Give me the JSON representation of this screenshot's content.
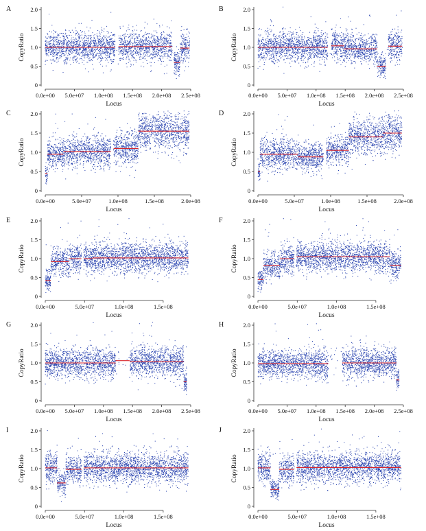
{
  "figure": {
    "layout": "5x2 grid of copy-ratio scatter panels"
  },
  "chart_data": [
    {
      "panel": "A",
      "type": "scatter",
      "xlabel": "Locus",
      "ylabel": "CopyRatio",
      "ylim": [
        0,
        2
      ],
      "xlim": [
        0,
        250000000.0
      ],
      "yticks": [
        0,
        0.5,
        1.0,
        1.5,
        2.0
      ],
      "ytick_labels": [
        "0",
        "0.5",
        "1.0",
        "1.5",
        "2.0"
      ],
      "xticks": [
        0,
        50000000.0,
        100000000.0,
        150000000.0,
        200000000.0,
        250000000.0
      ],
      "xtick_labels": [
        "0.0e+00",
        "5.0e+07",
        "1.0e+08",
        "1.5e+08",
        "2.0e+08",
        "2.5e+08"
      ],
      "extent": 248000000.0,
      "gaps": [
        [
          120000000.0,
          126000000.0
        ],
        [
          218000000.0,
          221000000.0
        ]
      ],
      "segments": [
        {
          "start": 0,
          "end": 120000000.0,
          "mean": 1.0
        },
        {
          "start": 126000000.0,
          "end": 218000000.0,
          "mean": 1.02
        },
        {
          "start": 221000000.0,
          "end": 232000000.0,
          "mean": 0.6
        },
        {
          "start": 232000000.0,
          "end": 248000000.0,
          "mean": 0.98
        }
      ]
    },
    {
      "panel": "B",
      "type": "scatter",
      "xlabel": "Locus",
      "ylabel": "CopyRatio",
      "ylim": [
        0,
        2
      ],
      "xlim": [
        0,
        250000000.0
      ],
      "yticks": [
        0,
        0.5,
        1.0,
        1.5,
        2.0
      ],
      "ytick_labels": [
        "0",
        "0.5",
        "1.0",
        "1.5",
        "2.0"
      ],
      "xticks": [
        0,
        50000000.0,
        100000000.0,
        150000000.0,
        200000000.0,
        250000000.0
      ],
      "xtick_labels": [
        "0.0e+00",
        "5.0e+07",
        "1.0e+08",
        "1.5e+08",
        "2.0e+08",
        "2.5e+08"
      ],
      "extent": 248000000.0,
      "gaps": [
        [
          120000000.0,
          126000000.0
        ],
        [
          220000000.0,
          224000000.0
        ]
      ],
      "segments": [
        {
          "start": 0,
          "end": 120000000.0,
          "mean": 1.0
        },
        {
          "start": 126000000.0,
          "end": 148000000.0,
          "mean": 1.04
        },
        {
          "start": 148000000.0,
          "end": 205000000.0,
          "mean": 0.96
        },
        {
          "start": 205000000.0,
          "end": 220000000.0,
          "mean": 0.5
        },
        {
          "start": 224000000.0,
          "end": 248000000.0,
          "mean": 1.03
        }
      ]
    },
    {
      "panel": "C",
      "type": "scatter",
      "xlabel": "Locus",
      "ylabel": "CopyRatio",
      "ylim": [
        0,
        2
      ],
      "xlim": [
        0,
        200000000.0
      ],
      "yticks": [
        0,
        0.5,
        1.0,
        1.5,
        2.0
      ],
      "ytick_labels": [
        "0",
        "0.5",
        "1.0",
        "1.5",
        "2.0"
      ],
      "xticks": [
        0,
        50000000.0,
        100000000.0,
        150000000.0,
        200000000.0
      ],
      "xtick_labels": [
        "0.0e+00",
        "5.0e+07",
        "1.0e+08",
        "1.5e+08",
        "2.0e+08"
      ],
      "extent": 198000000.0,
      "gaps": [
        [
          90000000.0,
          94000000.0
        ]
      ],
      "segments": [
        {
          "start": 0,
          "end": 3000000.0,
          "mean": 0.45
        },
        {
          "start": 3000000.0,
          "end": 25000000.0,
          "mean": 0.95
        },
        {
          "start": 25000000.0,
          "end": 90000000.0,
          "mean": 1.02
        },
        {
          "start": 94000000.0,
          "end": 128000000.0,
          "mean": 1.1
        },
        {
          "start": 128000000.0,
          "end": 198000000.0,
          "mean": 1.55
        }
      ]
    },
    {
      "panel": "D",
      "type": "scatter",
      "xlabel": "Locus",
      "ylabel": "CopyRatio",
      "ylim": [
        0,
        2
      ],
      "xlim": [
        0,
        200000000.0
      ],
      "yticks": [
        0,
        0.5,
        1.0,
        1.5,
        2.0
      ],
      "ytick_labels": [
        "0",
        "0.5",
        "1.0",
        "1.5",
        "2.0"
      ],
      "xticks": [
        0,
        50000000.0,
        100000000.0,
        150000000.0,
        200000000.0
      ],
      "xtick_labels": [
        "0.0e+00",
        "5.0e+07",
        "1.0e+08",
        "1.5e+08",
        "2.0e+08"
      ],
      "extent": 198000000.0,
      "gaps": [
        [
          90000000.0,
          94000000.0
        ]
      ],
      "segments": [
        {
          "start": 0,
          "end": 3000000.0,
          "mean": 0.5
        },
        {
          "start": 3000000.0,
          "end": 55000000.0,
          "mean": 0.95
        },
        {
          "start": 55000000.0,
          "end": 90000000.0,
          "mean": 0.88
        },
        {
          "start": 94000000.0,
          "end": 125000000.0,
          "mean": 1.05
        },
        {
          "start": 125000000.0,
          "end": 172000000.0,
          "mean": 1.4
        },
        {
          "start": 172000000.0,
          "end": 198000000.0,
          "mean": 1.5
        }
      ]
    },
    {
      "panel": "E",
      "type": "scatter",
      "xlabel": "Locus",
      "ylabel": "CopyRatio",
      "ylim": [
        0,
        2
      ],
      "xlim": [
        0,
        185000000.0
      ],
      "yticks": [
        0,
        0.5,
        1.0,
        1.5,
        2.0
      ],
      "ytick_labels": [
        "0",
        "0.5",
        "1.0",
        "1.5",
        "2.0"
      ],
      "xticks": [
        0,
        50000000.0,
        100000000.0,
        150000000.0
      ],
      "xtick_labels": [
        "0.0e+00",
        "5.0e+07",
        "1.0e+08",
        "1.5e+08"
      ],
      "extent": 182000000.0,
      "gaps": [
        [
          46000000.0,
          49000000.0
        ]
      ],
      "segments": [
        {
          "start": 0,
          "end": 7000000.0,
          "mean": 0.42
        },
        {
          "start": 7000000.0,
          "end": 30000000.0,
          "mean": 0.92
        },
        {
          "start": 30000000.0,
          "end": 46000000.0,
          "mean": 1.0
        },
        {
          "start": 49000000.0,
          "end": 60000000.0,
          "mean": 1.0
        },
        {
          "start": 60000000.0,
          "end": 182000000.0,
          "mean": 1.02
        }
      ]
    },
    {
      "panel": "F",
      "type": "scatter",
      "xlabel": "Locus",
      "ylabel": "CopyRatio",
      "ylim": [
        0,
        2
      ],
      "xlim": [
        0,
        185000000.0
      ],
      "yticks": [
        0,
        0.5,
        1.0,
        1.5,
        2.0
      ],
      "ytick_labels": [
        "0",
        "0.5",
        "1.0",
        "1.5",
        "2.0"
      ],
      "xticks": [
        0,
        50000000.0,
        100000000.0,
        150000000.0
      ],
      "xtick_labels": [
        "0.0e+00",
        "5.0e+07",
        "1.0e+08",
        "1.5e+08"
      ],
      "extent": 182000000.0,
      "gaps": [
        [
          46000000.0,
          49000000.0
        ]
      ],
      "segments": [
        {
          "start": 0,
          "end": 7000000.0,
          "mean": 0.45
        },
        {
          "start": 7000000.0,
          "end": 28000000.0,
          "mean": 0.82
        },
        {
          "start": 28000000.0,
          "end": 46000000.0,
          "mean": 1.0
        },
        {
          "start": 49000000.0,
          "end": 168000000.0,
          "mean": 1.05
        },
        {
          "start": 168000000.0,
          "end": 182000000.0,
          "mean": 0.82
        }
      ]
    },
    {
      "panel": "G",
      "type": "scatter",
      "xlabel": "Locus",
      "ylabel": "CopyRatio",
      "ylim": [
        0,
        2
      ],
      "xlim": [
        0,
        250000000.0
      ],
      "yticks": [
        0,
        0.5,
        1.0,
        1.5,
        2.0
      ],
      "ytick_labels": [
        "0",
        "0.5",
        "1.0",
        "1.5",
        "2.0"
      ],
      "xticks": [
        0,
        50000000.0,
        100000000.0,
        150000000.0,
        200000000.0,
        250000000.0
      ],
      "xtick_labels": [
        "0.0e+00",
        "5.0e+07",
        "1.0e+08",
        "1.5e+08",
        "2.0e+08",
        "2.5e+08"
      ],
      "extent": 243000000.0,
      "gaps": [
        [
          121000000.0,
          145000000.0
        ]
      ],
      "segments": [
        {
          "start": 0,
          "end": 121000000.0,
          "mean": 1.0
        },
        {
          "start": 121000000.0,
          "end": 145000000.0,
          "mean": 1.06
        },
        {
          "start": 145000000.0,
          "end": 238000000.0,
          "mean": 1.03
        },
        {
          "start": 238000000.0,
          "end": 243000000.0,
          "mean": 0.5
        }
      ]
    },
    {
      "panel": "H",
      "type": "scatter",
      "xlabel": "Locus",
      "ylabel": "CopyRatio",
      "ylim": [
        0,
        2
      ],
      "xlim": [
        0,
        250000000.0
      ],
      "yticks": [
        0,
        0.5,
        1.0,
        1.5,
        2.0
      ],
      "ytick_labels": [
        "0",
        "0.5",
        "1.0",
        "1.5",
        "2.0"
      ],
      "xticks": [
        0,
        50000000.0,
        100000000.0,
        150000000.0,
        200000000.0,
        250000000.0
      ],
      "xtick_labels": [
        "0.0e+00",
        "5.0e+07",
        "1.0e+08",
        "1.5e+08",
        "2.0e+08",
        "2.5e+08"
      ],
      "extent": 243000000.0,
      "gaps": [
        [
          121000000.0,
          145000000.0
        ]
      ],
      "segments": [
        {
          "start": 0,
          "end": 121000000.0,
          "mean": 0.98
        },
        {
          "start": 145000000.0,
          "end": 238000000.0,
          "mean": 1.0
        },
        {
          "start": 238000000.0,
          "end": 243000000.0,
          "mean": 0.55
        }
      ]
    },
    {
      "panel": "I",
      "type": "scatter",
      "xlabel": "Locus",
      "ylabel": "CopyRatio",
      "ylim": [
        0,
        2
      ],
      "xlim": [
        0,
        185000000.0
      ],
      "yticks": [
        0,
        0.5,
        1.0,
        1.5,
        2.0
      ],
      "ytick_labels": [
        "0",
        "0.5",
        "1.0",
        "1.5",
        "2.0"
      ],
      "xticks": [
        0,
        50000000.0,
        100000000.0,
        150000000.0
      ],
      "xtick_labels": [
        "0.0e+00",
        "5.0e+07",
        "1.0e+08",
        "1.5e+08"
      ],
      "extent": 182000000.0,
      "gaps": [
        [
          46000000.0,
          49000000.0
        ]
      ],
      "segments": [
        {
          "start": 0,
          "end": 15000000.0,
          "mean": 1.02
        },
        {
          "start": 15000000.0,
          "end": 26000000.0,
          "mean": 0.62
        },
        {
          "start": 26000000.0,
          "end": 46000000.0,
          "mean": 0.98
        },
        {
          "start": 49000000.0,
          "end": 182000000.0,
          "mean": 1.02
        }
      ]
    },
    {
      "panel": "J",
      "type": "scatter",
      "xlabel": "Locus",
      "ylabel": "CopyRatio",
      "ylim": [
        0,
        2
      ],
      "xlim": [
        0,
        185000000.0
      ],
      "yticks": [
        0,
        0.5,
        1.0,
        1.5,
        2.0
      ],
      "ytick_labels": [
        "0",
        "0.5",
        "1.0",
        "1.5",
        "2.0"
      ],
      "xticks": [
        0,
        50000000.0,
        100000000.0,
        150000000.0
      ],
      "xtick_labels": [
        "0.0e+00",
        "5.0e+07",
        "1.0e+08",
        "1.5e+08"
      ],
      "extent": 182000000.0,
      "gaps": [
        [
          46000000.0,
          49000000.0
        ]
      ],
      "segments": [
        {
          "start": 0,
          "end": 16000000.0,
          "mean": 1.02
        },
        {
          "start": 16000000.0,
          "end": 27000000.0,
          "mean": 0.45
        },
        {
          "start": 27000000.0,
          "end": 46000000.0,
          "mean": 0.98
        },
        {
          "start": 49000000.0,
          "end": 182000000.0,
          "mean": 1.03
        }
      ]
    }
  ],
  "colors": {
    "points": "#2b45b0",
    "segment": "#d8262c",
    "axis": "#333333",
    "text": "#111111"
  }
}
